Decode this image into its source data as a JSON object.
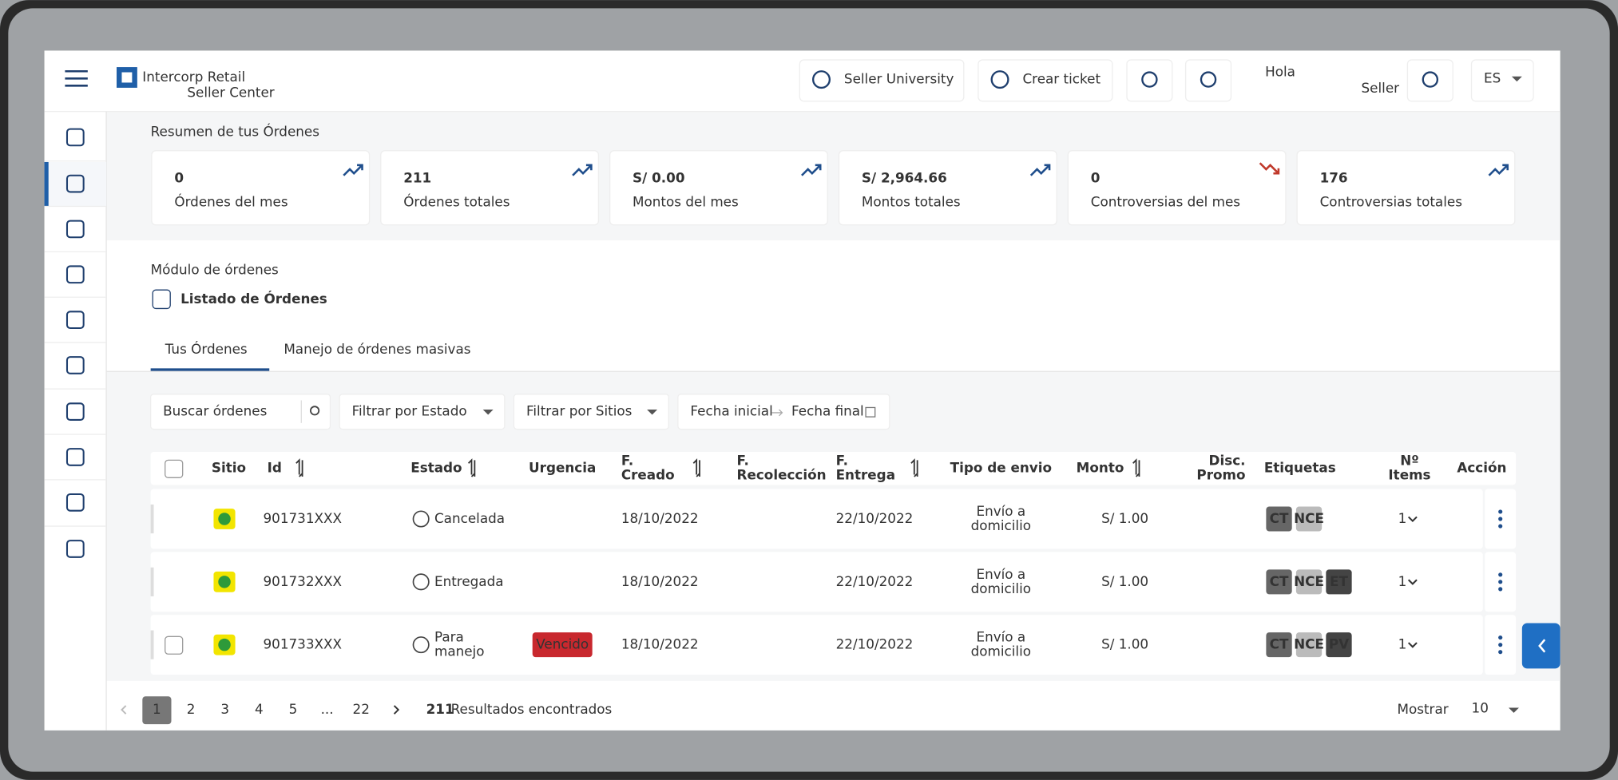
{
  "header": {
    "logo": "Intercorp Retail",
    "logo_sub": "Seller Center",
    "buttons": [
      "Seller University",
      "Crear ticket"
    ],
    "greeting": "Hola",
    "role": "Seller",
    "language": "ES"
  },
  "summary": {
    "title": "Resumen de tus Órdenes",
    "cards": [
      {
        "value": "0",
        "label": "Órdenes del mes",
        "trend": "up"
      },
      {
        "value": "211",
        "label": "Órdenes totales",
        "trend": "up"
      },
      {
        "value": "S/ 0.00",
        "label": "Montos del mes",
        "trend": "up"
      },
      {
        "value": "S/ 2,964.66",
        "label": "Montos totales",
        "trend": "up"
      },
      {
        "value": "0",
        "label": "Controversias del mes",
        "trend": "down"
      },
      {
        "value": "176",
        "label": "Controversias totales",
        "trend": "up"
      }
    ]
  },
  "module": {
    "breadcrumb": "Módulo de órdenes",
    "title": "Listado de Órdenes"
  },
  "tabs": [
    "Tus Órdenes",
    "Manejo de órdenes masivas"
  ],
  "filters": {
    "search": "Buscar órdenes",
    "estado": "Filtrar por Estado",
    "sitios": "Filtrar por Sitios",
    "date_start": "Fecha inicial",
    "date_end": "Fecha final"
  },
  "table": {
    "columns": [
      [
        "Sitio"
      ],
      [
        "Id"
      ],
      [
        "Estado"
      ],
      [
        "Urgencia"
      ],
      [
        "F.",
        "Creado"
      ],
      [
        "F.",
        "Recolección"
      ],
      [
        "F.",
        "Entrega"
      ],
      [
        "Tipo de envio"
      ],
      [
        "Monto"
      ],
      [
        "Disc.",
        "Promo"
      ],
      [
        "Etiquetas"
      ],
      [
        "Nº",
        "Items"
      ],
      [
        "Acción"
      ]
    ],
    "rows": [
      {
        "id": "901731XXX",
        "estado": [
          "Cancelada"
        ],
        "creado": "18/10/2022",
        "entrega": "22/10/2022",
        "tipo": [
          "Envío a",
          "domicilio"
        ],
        "monto": "S/ 1.00",
        "tags": [
          "CT",
          "NCE"
        ],
        "items": "1"
      },
      {
        "id": "901732XXX",
        "estado": [
          "Entregada"
        ],
        "creado": "18/10/2022",
        "entrega": "22/10/2022",
        "tipo": [
          "Envío a",
          "domicilio"
        ],
        "monto": "S/ 1.00",
        "tags": [
          "CT",
          "NCE",
          "ET"
        ],
        "items": "1"
      },
      {
        "id": "901733XXX",
        "estado": [
          "Para",
          "manejo"
        ],
        "urgencia": "Vencido",
        "creado": "18/10/2022",
        "entrega": "22/10/2022",
        "tipo": [
          "Envío a",
          "domicilio"
        ],
        "monto": "S/ 1.00",
        "tags": [
          "CT",
          "NCE",
          "PV"
        ],
        "items": "1"
      }
    ]
  },
  "pagination": {
    "pages": [
      "1",
      "2",
      "3",
      "4",
      "5",
      "...",
      "22"
    ],
    "total": "211",
    "results": "Resultados encontrados",
    "show": "Mostrar",
    "page_size": "10"
  }
}
